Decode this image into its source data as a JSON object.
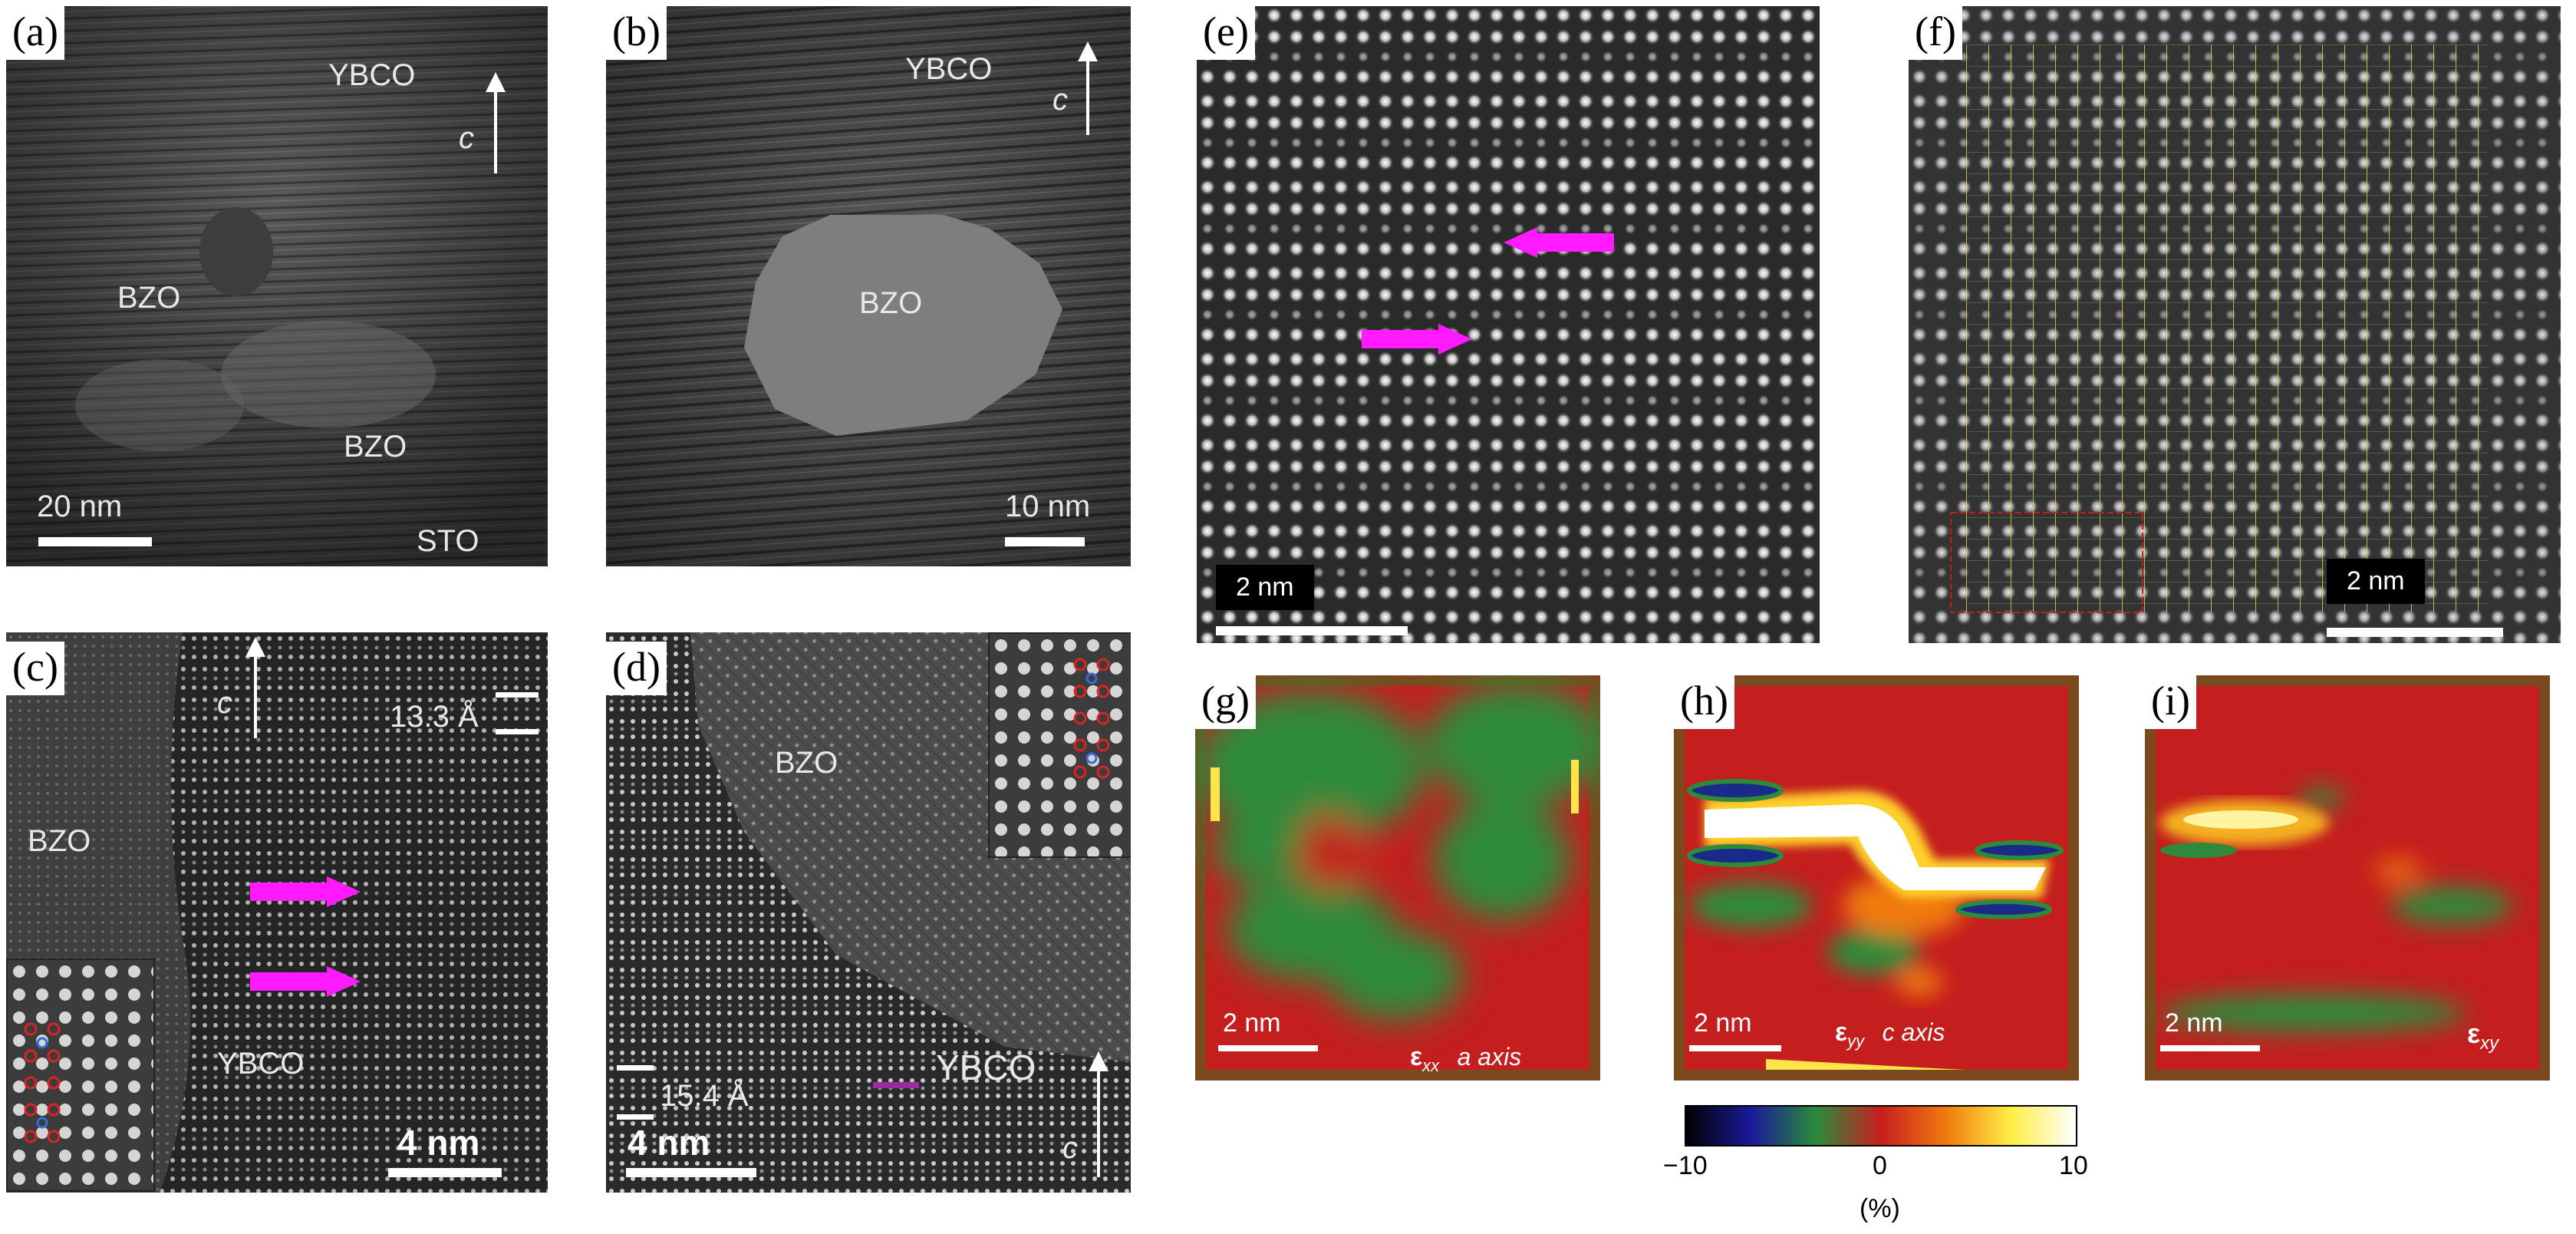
{
  "panels": {
    "a": {
      "tag": "(a)",
      "labels": {
        "ybco": "YBCO",
        "c": "c",
        "bzo1": "BZO",
        "bzo2": "BZO",
        "sto": "STO"
      },
      "scale": "20 nm"
    },
    "b": {
      "tag": "(b)",
      "labels": {
        "ybco": "YBCO",
        "c": "c",
        "bzo": "BZO"
      },
      "scale": "10 nm"
    },
    "c": {
      "tag": "(c)",
      "labels": {
        "c": "c",
        "spacing": "13.3 Å",
        "bzo": "BZO",
        "ybco": "YBCO"
      },
      "scale": "4 nm"
    },
    "d": {
      "tag": "(d)",
      "labels": {
        "bzo": "BZO",
        "ybco": "YBCO",
        "spacing": "15.4 Å",
        "c": "c"
      },
      "scale": "4 nm"
    },
    "e": {
      "tag": "(e)",
      "scale": "2 nm"
    },
    "f": {
      "tag": "(f)",
      "scale": "2 nm"
    },
    "g": {
      "tag": "(g)",
      "scale": "2 nm",
      "strain": "ε",
      "strain_sub": "xx",
      "axis": "a axis"
    },
    "h": {
      "tag": "(h)",
      "scale": "2 nm",
      "strain": "ε",
      "strain_sub": "yy",
      "axis": "c axis"
    },
    "i": {
      "tag": "(i)",
      "scale": "2 nm",
      "strain": "ε",
      "strain_sub": "xy"
    }
  },
  "colorbar": {
    "min": "−10",
    "mid": "0",
    "max": "10",
    "unit": "(%)",
    "stops": [
      "#000000",
      "#1a1a9a",
      "#2a8a3a",
      "#c81e1e",
      "#f07a10",
      "#ffee44",
      "#ffffff"
    ]
  }
}
